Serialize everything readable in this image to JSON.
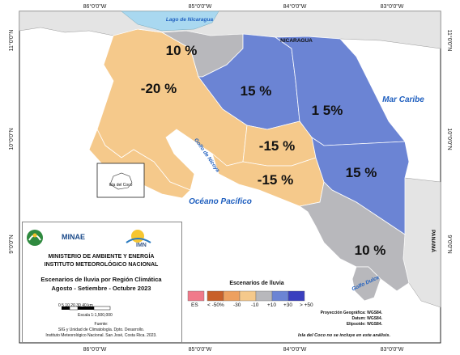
{
  "coords": {
    "top": [
      "86°0'0\"W",
      "85°0'0\"W",
      "84°0'0\"W",
      "83°0'0\"W"
    ],
    "bottom": [
      "86°0'0\"W",
      "85°0'0\"W",
      "84°0'0\"W",
      "83°0'0\"W"
    ],
    "left": [
      "11°0'0\"N",
      "10°0'0\"N",
      "9°0'0\"N"
    ],
    "right": [
      "11°0'0\"N",
      "10°0'0\"N",
      "9°0'0\"N"
    ]
  },
  "regions": {
    "north_pacific": "-20 %",
    "north_zone": "10 %",
    "north_caribbean": "15 %",
    "caribbean": "1 5%",
    "central_valley": "-15 %",
    "central_pacific": "-15 %",
    "south_caribbean": "15 %",
    "south_pacific": "10 %"
  },
  "colors": {
    "dry": "#f5c98b",
    "wet": "#6b84d4",
    "normal": "#b8b8bc",
    "nicaragua": "#e4e4e4",
    "sea": "#ffffff",
    "lake": "#a9d8f0"
  },
  "water_labels": {
    "lake": "Lago de Nicaragua",
    "caribbean": "Mar Caribe",
    "pacific": "Océano Pacífico",
    "nicoya": "Golfo de Nicoya",
    "dulce": "Golfo Dulce"
  },
  "country_labels": {
    "nicaragua": "NICARAGUA",
    "panama": "PANAMÁ"
  },
  "island_label": "Isla del Coco",
  "legend": {
    "minae": "MINAE",
    "imn": "IMN",
    "ministry": "MINISTERIO DE AMBIENTE Y ENERGÍA",
    "institute": "INSTITUTO METEOROLÓGICO NACIONAL",
    "title1": "Escenarios de lluvia por Región Climática",
    "title2": "Agosto - Setiembre - Octubre 2023",
    "scale_ticks": "0  5 10    20    30    40",
    "scale_unit": "km",
    "scale_label": "Escala 1:1,500,000",
    "source1": "Fuente:",
    "source2": "SIG y Unidad de Climatología. Dpto. Desarrollo.",
    "source3": "Instituto Meteorológico Nacional. San José, Costa Rica. 2023."
  },
  "scale_legend": {
    "title": "Escenarios de lluvia",
    "labels": [
      "ES",
      "< -50%",
      "-30",
      "-10",
      "+10",
      "+30",
      "> +50"
    ],
    "colors": [
      "#f07a8a",
      "#c8602a",
      "#eda060",
      "#f5c98b",
      "#b8b8bc",
      "#6b84d4",
      "#3a3fbf"
    ]
  },
  "projection": {
    "line1": "Proyección Geográfica: WGS84.",
    "line2": "Datum: WGS84.",
    "line3": "Elipsoide: WGS84."
  },
  "footnote": "Isla del Coco no se incluye en este análisis."
}
